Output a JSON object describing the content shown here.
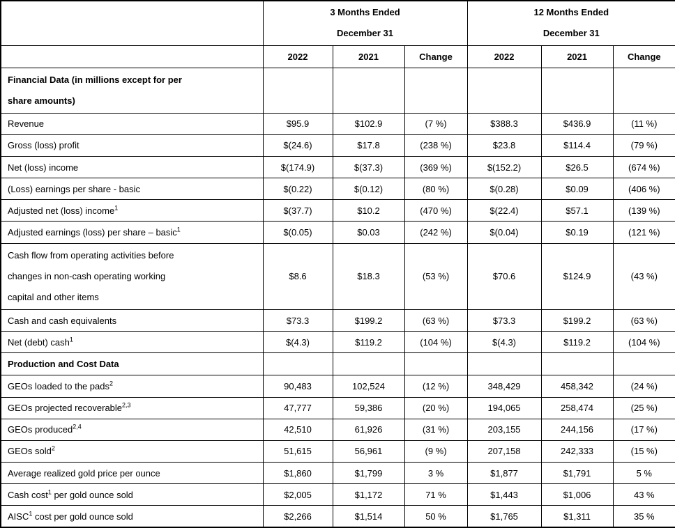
{
  "table": {
    "col_groups": [
      {
        "line1": "3 Months Ended",
        "line2": "December 31"
      },
      {
        "line1": "12 Months Ended",
        "line2": "December 31"
      }
    ],
    "year_headers": [
      "2022",
      "2021",
      "Change",
      "2022",
      "2021",
      "Change"
    ],
    "rows": [
      {
        "type": "section",
        "lines": [
          "Financial Data (in millions except for per",
          "share amounts)"
        ],
        "values": [
          "",
          "",
          "",
          "",
          "",
          ""
        ]
      },
      {
        "type": "data",
        "label": [
          {
            "text": "Revenue"
          }
        ],
        "values": [
          "$95.9",
          "$102.9",
          "(7 %)",
          "$388.3",
          "$436.9",
          "(11 %)"
        ]
      },
      {
        "type": "data",
        "label": [
          {
            "text": "Gross (loss) profit"
          }
        ],
        "values": [
          "$(24.6)",
          "$17.8",
          "(238 %)",
          "$23.8",
          "$114.4",
          "(79 %)"
        ]
      },
      {
        "type": "data",
        "label": [
          {
            "text": "Net (loss) income"
          }
        ],
        "values": [
          "$(174.9)",
          "$(37.3)",
          "(369 %)",
          "$(152.2)",
          "$26.5",
          "(674 %)"
        ]
      },
      {
        "type": "data",
        "label": [
          {
            "text": "(Loss) earnings per share - basic"
          }
        ],
        "values": [
          "$(0.22)",
          "$(0.12)",
          "(80 %)",
          "$(0.28)",
          "$0.09",
          "(406 %)"
        ]
      },
      {
        "type": "data",
        "label": [
          {
            "text": "Adjusted net (loss) income"
          },
          {
            "sup": "1"
          }
        ],
        "values": [
          "$(37.7)",
          "$10.2",
          "(470 %)",
          "$(22.4)",
          "$57.1",
          "(139 %)"
        ]
      },
      {
        "type": "data",
        "label": [
          {
            "text": "Adjusted earnings (loss) per share – basic"
          },
          {
            "sup": "1"
          }
        ],
        "values": [
          "$(0.05)",
          "$0.03",
          "(242 %)",
          "$(0.04)",
          "$0.19",
          "(121 %)"
        ]
      },
      {
        "type": "data",
        "lines": [
          "Cash flow from operating activities before",
          "changes in non-cash operating working",
          "capital and other items"
        ],
        "values": [
          "$8.6",
          "$18.3",
          "(53 %)",
          "$70.6",
          "$124.9",
          "(43 %)"
        ]
      },
      {
        "type": "data",
        "label": [
          {
            "text": "Cash and cash equivalents"
          }
        ],
        "values": [
          "$73.3",
          "$199.2",
          "(63 %)",
          "$73.3",
          "$199.2",
          "(63 %)"
        ]
      },
      {
        "type": "data",
        "label": [
          {
            "text": "Net (debt) cash"
          },
          {
            "sup": "1"
          }
        ],
        "values": [
          "$(4.3)",
          "$119.2",
          "(104 %)",
          "$(4.3)",
          "$119.2",
          "(104 %)"
        ]
      },
      {
        "type": "section",
        "label": [
          {
            "text": "Production and Cost Data"
          }
        ],
        "values": [
          "",
          "",
          "",
          "",
          "",
          ""
        ]
      },
      {
        "type": "data",
        "label": [
          {
            "text": "GEOs loaded to the pads"
          },
          {
            "sup": "2"
          }
        ],
        "values": [
          "90,483",
          "102,524",
          "(12 %)",
          "348,429",
          "458,342",
          "(24 %)"
        ]
      },
      {
        "type": "data",
        "label": [
          {
            "text": "GEOs projected recoverable"
          },
          {
            "sup": "2,3"
          }
        ],
        "values": [
          "47,777",
          "59,386",
          "(20 %)",
          "194,065",
          "258,474",
          "(25 %)"
        ]
      },
      {
        "type": "data",
        "label": [
          {
            "text": "GEOs produced"
          },
          {
            "sup": "2,4"
          }
        ],
        "values": [
          "42,510",
          "61,926",
          "(31 %)",
          "203,155",
          "244,156",
          "(17 %)"
        ]
      },
      {
        "type": "data",
        "label": [
          {
            "text": "GEOs sold"
          },
          {
            "sup": "2"
          }
        ],
        "values": [
          "51,615",
          "56,961",
          "(9 %)",
          "207,158",
          "242,333",
          "(15 %)"
        ]
      },
      {
        "type": "data",
        "label": [
          {
            "text": "Average realized gold price per ounce"
          }
        ],
        "values": [
          "$1,860",
          "$1,799",
          "3 %",
          "$1,877",
          "$1,791",
          "5 %"
        ]
      },
      {
        "type": "data",
        "label": [
          {
            "text": "Cash cost"
          },
          {
            "sup": "1"
          },
          {
            "text": " per gold ounce sold"
          }
        ],
        "values": [
          "$2,005",
          "$1,172",
          "71 %",
          "$1,443",
          "$1,006",
          "43 %"
        ]
      },
      {
        "type": "data",
        "label": [
          {
            "text": "AISC"
          },
          {
            "sup": "1"
          },
          {
            "text": " cost per gold ounce sold"
          }
        ],
        "values": [
          "$2,266",
          "$1,514",
          "50 %",
          "$1,765",
          "$1,311",
          "35 %"
        ]
      }
    ]
  }
}
